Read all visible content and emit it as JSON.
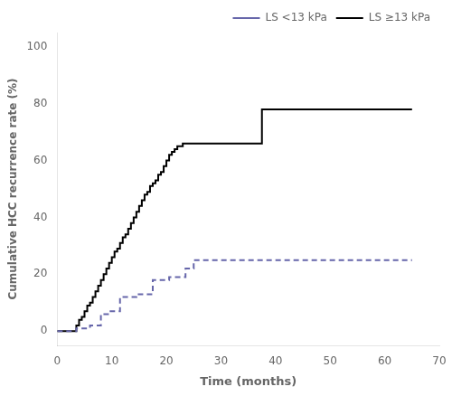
{
  "chart_data": {
    "type": "step",
    "xlabel": "Time (months)",
    "ylabel": "Cumulative HCC recurrence rate (%)",
    "xlim": [
      0,
      70
    ],
    "ylim": [
      -5,
      105
    ],
    "xticks": [
      0,
      10,
      20,
      30,
      40,
      50,
      60,
      70
    ],
    "yticks": [
      0,
      20,
      40,
      60,
      80,
      100
    ],
    "grid": false,
    "legend": "upper right",
    "series": [
      {
        "name": "LS <13 kPa",
        "color": "#6666aa",
        "line_style": "dashed",
        "x": [
          0,
          3.0,
          3.5,
          5.0,
          6.0,
          7.0,
          8.0,
          9.0,
          9.5,
          10.5,
          11.5,
          13.0,
          14.5,
          16.0,
          17.5,
          19.0,
          20.5,
          22.0,
          23.5,
          25.0,
          26.0,
          65
        ],
        "values": [
          0,
          0,
          1,
          1,
          2,
          2,
          6,
          6,
          7,
          7,
          12,
          12,
          13,
          13,
          18,
          18,
          19,
          19,
          22,
          25,
          25,
          25
        ]
      },
      {
        "name": "LS ≥13 kPa",
        "color": "#000000",
        "line_style": "solid",
        "x": [
          0,
          3.0,
          3.5,
          4.0,
          4.5,
          5.0,
          5.5,
          6.0,
          6.5,
          7.0,
          7.5,
          8.0,
          8.5,
          9.0,
          9.5,
          10.0,
          10.5,
          11.0,
          11.5,
          12.0,
          12.5,
          13.0,
          13.5,
          14.0,
          14.5,
          15.0,
          15.5,
          16.0,
          16.5,
          17.0,
          17.5,
          18.0,
          18.5,
          19.0,
          19.5,
          20.0,
          20.5,
          21.0,
          21.5,
          22.0,
          22.5,
          23.0,
          35.0,
          37.5,
          65
        ],
        "values": [
          0,
          0,
          2,
          4,
          5,
          7,
          9,
          10,
          12,
          14,
          16,
          18,
          20,
          22,
          24,
          26,
          28,
          29,
          31,
          33,
          34,
          36,
          38,
          40,
          42,
          44,
          46,
          48,
          49,
          51,
          52,
          53,
          55,
          56,
          58,
          60,
          62,
          63,
          64,
          65,
          65,
          66,
          66,
          78,
          78
        ]
      }
    ]
  }
}
